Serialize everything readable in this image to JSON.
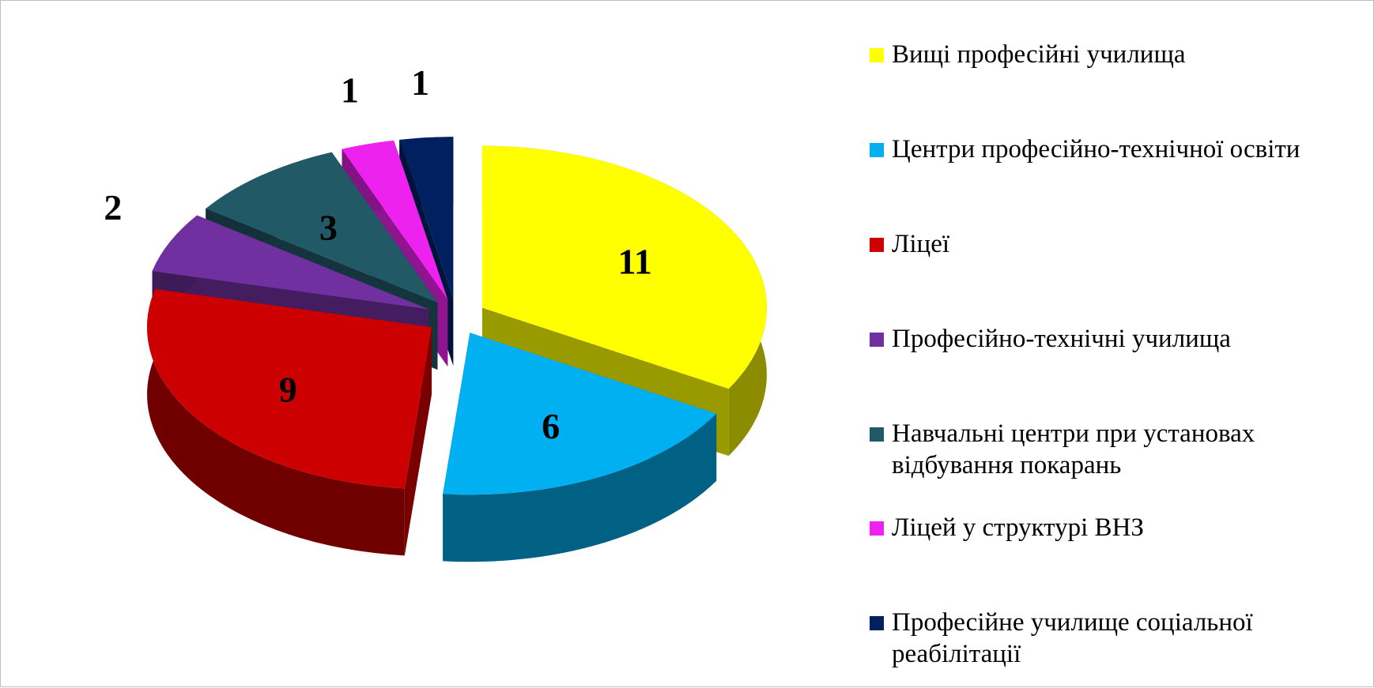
{
  "chart_data": {
    "type": "pie",
    "categories": [
      "Вищі професійні училища",
      "Центри професійно-технічної освіти",
      "Ліцеї",
      "Професійно-технічні училища",
      "Навчальні центри при установах відбування покарань",
      "Ліцей у структурі ВНЗ",
      "Професійне училище соціальної реабілітації"
    ],
    "values": [
      11,
      6,
      9,
      2,
      3,
      1,
      1
    ],
    "colors": [
      "#ffff00",
      "#00b0f0",
      "#cc0000",
      "#7030a0",
      "#215967",
      "#ee22ee",
      "#002060"
    ],
    "legend": "right"
  }
}
